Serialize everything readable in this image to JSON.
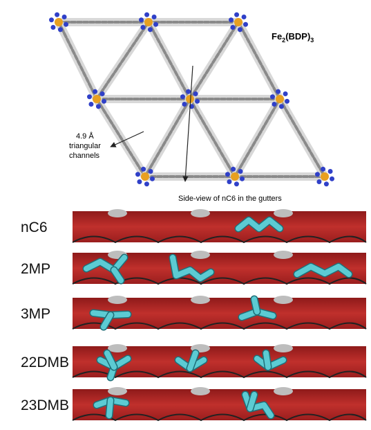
{
  "framework": {
    "formula": [
      "Fe",
      "2",
      "(BDP)",
      "3"
    ],
    "channel_note": [
      "4.9 Å",
      "triangular",
      "channels"
    ],
    "side_view_caption": "Side-view of nC6 in the gutters"
  },
  "rows": [
    {
      "label": "nC6"
    },
    {
      "label": "2MP"
    },
    {
      "label": "3MP"
    },
    {
      "label": "22DMB"
    },
    {
      "label": "23DMB"
    }
  ]
}
